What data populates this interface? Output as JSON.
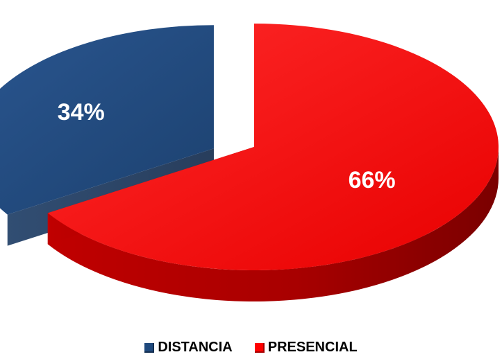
{
  "chart_data": {
    "type": "pie",
    "title": "",
    "series": [
      {
        "name": "DISTANCIA",
        "value": 34,
        "label": "34%",
        "color": "#1F497D"
      },
      {
        "name": "PRESENCIAL",
        "value": 66,
        "label": "66%",
        "color": "#FF0000"
      }
    ],
    "legend_position": "bottom",
    "style": "3d-exploded"
  }
}
